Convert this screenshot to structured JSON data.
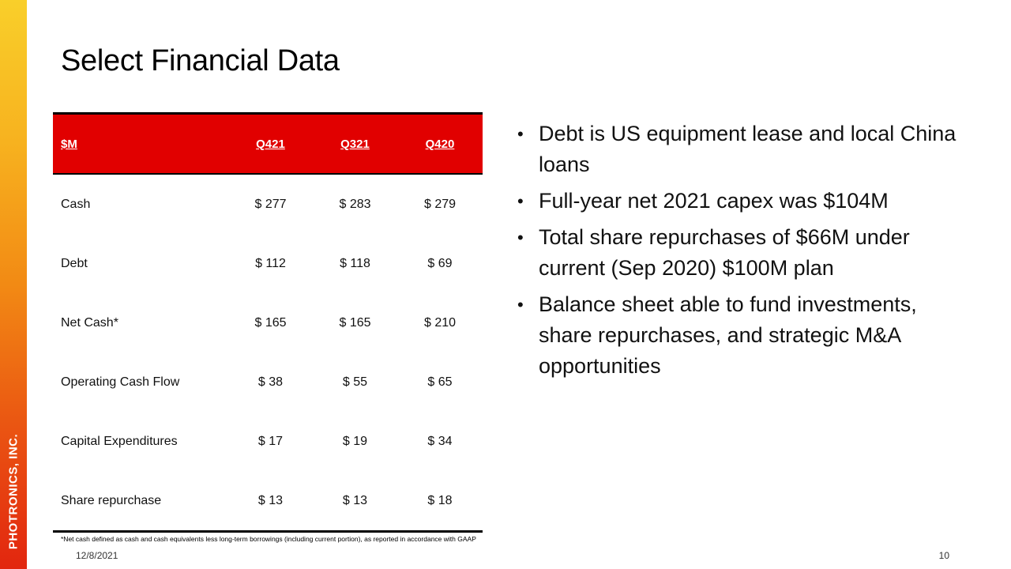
{
  "brand": "PHOTRONICS, INC.",
  "title": "Select Financial Data",
  "table": {
    "headers": [
      "$M",
      "Q421",
      "Q321",
      "Q420"
    ],
    "rows": [
      {
        "label": "Cash",
        "values": [
          "$ 277",
          "$ 283",
          "$ 279"
        ]
      },
      {
        "label": "Debt",
        "values": [
          "$ 112",
          "$ 118",
          "$ 69"
        ]
      },
      {
        "label": "Net Cash*",
        "values": [
          "$ 165",
          "$ 165",
          "$ 210"
        ]
      },
      {
        "label": "Operating Cash Flow",
        "values": [
          "$ 38",
          "$ 55",
          "$ 65"
        ]
      },
      {
        "label": "Capital Expenditures",
        "values": [
          "$ 17",
          "$ 19",
          "$ 34"
        ]
      },
      {
        "label": "Share repurchase",
        "values": [
          "$ 13",
          "$ 13",
          "$ 18"
        ]
      }
    ]
  },
  "bullets": [
    "Debt is US equipment lease and local China loans",
    "Full-year net 2021 capex was $104M",
    "Total share repurchases of $66M under current (Sep 2020) $100M plan",
    "Balance sheet able to fund investments, share repurchases, and strategic M&A opportunities"
  ],
  "footnote": "*Net cash defined as cash and cash equivalents less long-term borrowings (including current portion), as reported in accordance with GAAP",
  "date": "12/8/2021",
  "page_number": "10",
  "colors": {
    "header_red": "#e10000",
    "band_top": "#f9cf2a",
    "band_bottom": "#e2260f"
  }
}
